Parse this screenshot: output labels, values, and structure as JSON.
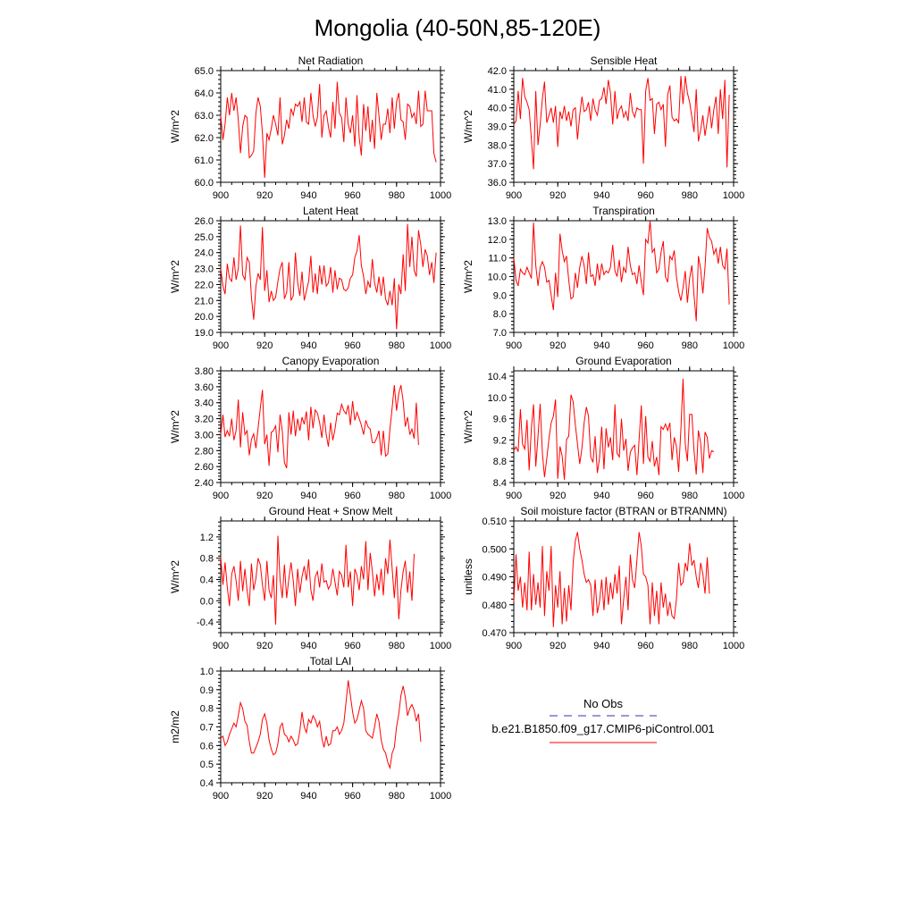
{
  "figure_title": "Mongolia (40-50N,85-120E)",
  "legend": {
    "obs_label": "No Obs",
    "obs_color": "#3333aa",
    "model_label": "b.e21.B1850.f09_g17.CMIP6-piControl.001",
    "model_color": "#ff0000"
  },
  "chart_data": [
    {
      "type": "line",
      "title": "Net Radiation",
      "ylabel": "W/m^2",
      "xlim": [
        900,
        1000
      ],
      "ylim": [
        60.0,
        65.0
      ],
      "xticks": [
        "900",
        "920",
        "940",
        "960",
        "980",
        "1000"
      ],
      "yticks": [
        "60.0",
        "61.0",
        "62.0",
        "63.0",
        "64.0",
        "65.0"
      ],
      "x_start": 900,
      "values": [
        63.0,
        61.9,
        62.6,
        63.8,
        63.0,
        64.0,
        63.2,
        63.8,
        62.8,
        61.3,
        62.5,
        63.0,
        62.9,
        61.1,
        61.2,
        61.4,
        63.1,
        63.8,
        63.4,
        62.2,
        60.2,
        62.2,
        61.9,
        62.4,
        63.0,
        62.6,
        62.1,
        63.8,
        61.7,
        62.1,
        62.8,
        62.4,
        63.3,
        63.0,
        63.5,
        63.4,
        63.6,
        62.7,
        63.8,
        62.7,
        62.6,
        64.0,
        63.0,
        62.5,
        62.9,
        64.4,
        62.0,
        63.0,
        63.2,
        62.5,
        62.0,
        63.6,
        62.4,
        64.5,
        63.1,
        62.9,
        61.8,
        63.8,
        62.6,
        62.2,
        63.0,
        61.6,
        63.9,
        62.0,
        61.2,
        63.5,
        62.3,
        63.4,
        61.8,
        62.8,
        61.5,
        64.0,
        63.0,
        61.9,
        62.6,
        62.6,
        63.3,
        62.2,
        63.8,
        62.4,
        63.6,
        64.0,
        62.8,
        62.7,
        61.9,
        63.5,
        63.4,
        62.9,
        63.1,
        62.6,
        64.1,
        62.5,
        62.6,
        64.1,
        63.2,
        63.2,
        63.2,
        61.3,
        60.9
      ]
    },
    {
      "type": "line",
      "title": "Sensible Heat",
      "ylabel": "W/m^2",
      "xlim": [
        900,
        1000
      ],
      "ylim": [
        36.0,
        42.0
      ],
      "xticks": [
        "900",
        "920",
        "940",
        "960",
        "980",
        "1000"
      ],
      "yticks": [
        "36.0",
        "37.0",
        "38.0",
        "39.0",
        "40.0",
        "41.0",
        "42.0"
      ],
      "x_start": 900,
      "values": [
        39.1,
        39.3,
        40.9,
        39.4,
        41.6,
        40.6,
        40.3,
        39.9,
        38.3,
        36.7,
        40.9,
        38.0,
        39.1,
        40.5,
        41.4,
        39.2,
        39.6,
        40.0,
        39.2,
        40.1,
        37.9,
        39.8,
        39.4,
        40.1,
        39.3,
        39.8,
        39.0,
        39.9,
        40.0,
        38.3,
        39.6,
        40.6,
        39.8,
        39.9,
        40.3,
        39.3,
        40.5,
        39.9,
        39.6,
        40.4,
        40.5,
        41.1,
        40.2,
        41.5,
        40.8,
        39.1,
        40.9,
        39.4,
        39.9,
        40.1,
        39.5,
        39.8,
        39.3,
        40.8,
        39.8,
        39.5,
        40.0,
        39.9,
        39.9,
        37.0,
        40.9,
        41.6,
        40.4,
        40.5,
        38.6,
        40.2,
        40.3,
        39.9,
        40.2,
        37.9,
        40.7,
        41.2,
        39.5,
        39.3,
        39.4,
        39.2,
        41.7,
        40.2,
        41.7,
        40.8,
        40.3,
        39.5,
        38.7,
        41.0,
        38.2,
        38.8,
        39.6,
        38.5,
        39.3,
        40.1,
        38.9,
        39.9,
        40.6,
        38.6,
        41.0,
        39.4,
        41.5,
        36.8,
        40.7
      ]
    },
    {
      "type": "line",
      "title": "Latent Heat",
      "ylabel": "W/m^2",
      "xlim": [
        900,
        1000
      ],
      "ylim": [
        19.0,
        26.0
      ],
      "xticks": [
        "900",
        "920",
        "940",
        "960",
        "980",
        "1000"
      ],
      "yticks": [
        "19.0",
        "20.0",
        "21.0",
        "22.0",
        "23.0",
        "24.0",
        "25.0",
        "26.0"
      ],
      "x_start": 900,
      "values": [
        23.0,
        21.9,
        21.4,
        23.3,
        22.4,
        22.2,
        23.7,
        22.3,
        23.0,
        25.7,
        22.6,
        22.3,
        23.7,
        23.4,
        21.2,
        19.8,
        21.9,
        22.7,
        22.3,
        25.6,
        21.6,
        22.9,
        20.9,
        21.6,
        21.0,
        21.2,
        22.2,
        23.0,
        23.4,
        21.1,
        21.5,
        23.4,
        21.0,
        21.3,
        24.0,
        22.1,
        21.3,
        22.8,
        21.0,
        21.6,
        22.2,
        23.8,
        21.5,
        22.7,
        21.4,
        23.2,
        22.0,
        23.2,
        21.9,
        22.1,
        23.1,
        21.5,
        22.9,
        21.7,
        22.4,
        22.3,
        21.7,
        21.6,
        21.8,
        22.4,
        22.6,
        23.7,
        24.1,
        25.1,
        23.2,
        22.5,
        21.4,
        22.2,
        21.8,
        23.6,
        22.1,
        21.5,
        22.5,
        21.3,
        22.5,
        21.1,
        20.7,
        21.6,
        20.7,
        22.4,
        19.2,
        22.0,
        21.4,
        23.9,
        21.6,
        25.8,
        23.1,
        25.0,
        22.9,
        22.5,
        25.4,
        24.5,
        23.1,
        24.2,
        23.8,
        22.6,
        23.4,
        22.1,
        24.0
      ]
    },
    {
      "type": "line",
      "title": "Transpiration",
      "ylabel": "W/m^2",
      "xlim": [
        900,
        1000
      ],
      "ylim": [
        7.0,
        13.0
      ],
      "xticks": [
        "900",
        "920",
        "940",
        "960",
        "980",
        "1000"
      ],
      "yticks": [
        "7.0",
        "8.0",
        "9.0",
        "10.0",
        "11.0",
        "12.0",
        "13.0"
      ],
      "x_start": 900,
      "values": [
        11.0,
        9.8,
        9.5,
        10.4,
        10.2,
        10.1,
        10.5,
        10.2,
        9.9,
        12.9,
        10.6,
        9.5,
        10.5,
        10.8,
        10.5,
        9.7,
        9.8,
        9.0,
        8.2,
        10.2,
        8.9,
        12.3,
        11.4,
        10.8,
        11.1,
        9.8,
        8.8,
        8.9,
        10.2,
        9.4,
        10.5,
        11.1,
        10.6,
        9.6,
        11.3,
        10.0,
        10.1,
        9.5,
        10.7,
        9.8,
        10.7,
        10.1,
        10.3,
        10.2,
        10.5,
        11.7,
        10.3,
        10.0,
        10.9,
        9.7,
        10.5,
        10.2,
        11.6,
        10.6,
        10.1,
        10.2,
        9.6,
        10.6,
        9.7,
        9.0,
        12.0,
        11.8,
        13.0,
        11.3,
        11.5,
        10.2,
        10.4,
        11.3,
        11.9,
        10.0,
        9.7,
        11.1,
        10.9,
        11.4,
        10.0,
        9.2,
        8.7,
        9.4,
        10.3,
        8.6,
        9.9,
        10.6,
        9.0,
        7.6,
        11.1,
        10.4,
        9.1,
        10.5,
        12.6,
        12.1,
        11.9,
        11.2,
        11.5,
        10.7,
        11.6,
        10.6,
        10.4,
        11.5,
        8.5
      ]
    },
    {
      "type": "line",
      "title": "Canopy Evaporation",
      "ylabel": "W/m^2",
      "xlim": [
        900,
        1000
      ],
      "ylim": [
        2.4,
        3.8
      ],
      "xticks": [
        "900",
        "920",
        "940",
        "960",
        "980",
        "1000"
      ],
      "yticks": [
        "2.40",
        "2.60",
        "2.80",
        "3.00",
        "3.20",
        "3.40",
        "3.60",
        "3.80"
      ],
      "x_start": 900,
      "values": [
        3.0,
        3.25,
        2.97,
        3.05,
        2.98,
        3.2,
        2.93,
        3.05,
        3.44,
        2.84,
        3.28,
        3.0,
        3.05,
        2.74,
        2.94,
        3.01,
        2.83,
        3.08,
        3.33,
        3.56,
        2.88,
        3.0,
        2.61,
        3.03,
        3.05,
        3.11,
        2.78,
        3.25,
        3.05,
        2.65,
        2.58,
        3.28,
        3.0,
        3.3,
        2.98,
        3.2,
        3.05,
        3.22,
        3.13,
        3.29,
        2.93,
        3.35,
        3.08,
        3.31,
        3.27,
        3.15,
        2.96,
        3.25,
        3.0,
        2.85,
        3.15,
        2.93,
        3.07,
        3.27,
        3.25,
        3.38,
        3.3,
        3.26,
        3.37,
        3.12,
        3.42,
        3.18,
        3.28,
        3.2,
        3.12,
        3.0,
        3.18,
        3.1,
        3.07,
        2.9,
        2.9,
        2.96,
        3.05,
        2.74,
        3.05,
        2.73,
        2.76,
        3.07,
        3.34,
        3.62,
        3.3,
        3.52,
        3.62,
        3.42,
        3.1,
        3.22,
        3.0,
        3.07,
        2.95,
        3.4,
        2.87
      ]
    },
    {
      "type": "line",
      "title": "Ground Evaporation",
      "ylabel": "W/m^2",
      "xlim": [
        900,
        1000
      ],
      "ylim": [
        8.4,
        10.5
      ],
      "xticks": [
        "900",
        "920",
        "940",
        "960",
        "980",
        "1000"
      ],
      "yticks": [
        "8.4",
        "8.8",
        "9.2",
        "9.6",
        "10.0",
        "10.4"
      ],
      "x_start": 900,
      "values": [
        9.0,
        9.07,
        8.98,
        9.78,
        9.12,
        9.03,
        9.58,
        8.63,
        9.42,
        9.87,
        8.7,
        9.27,
        9.88,
        8.95,
        8.5,
        8.85,
        9.23,
        9.52,
        9.65,
        9.96,
        8.47,
        9.08,
        8.9,
        8.45,
        9.21,
        9.27,
        10.05,
        9.92,
        9.48,
        9.12,
        8.75,
        9.05,
        9.52,
        9.82,
        9.65,
        8.88,
        8.78,
        9.27,
        8.58,
        8.85,
        9.45,
        8.65,
        9.42,
        9.06,
        9.25,
        8.82,
        9.87,
        8.95,
        8.88,
        9.6,
        9.0,
        9.22,
        8.62,
        8.97,
        9.05,
        9.1,
        8.54,
        9.2,
        9.85,
        8.75,
        9.65,
        8.88,
        8.8,
        9.18,
        8.7,
        8.88,
        8.54,
        9.45,
        9.4,
        9.5,
        9.38,
        9.52,
        8.82,
        9.25,
        9.08,
        8.6,
        9.4,
        10.35,
        9.12,
        8.8,
        9.68,
        9.68,
        9.0,
        8.55,
        9.38,
        9.15,
        8.58,
        9.35,
        9.25,
        8.85,
        9.0,
        8.98
      ]
    },
    {
      "type": "line",
      "title": "Ground Heat + Snow Melt",
      "ylabel": "W/m^2",
      "xlim": [
        900,
        1000
      ],
      "ylim": [
        -0.6,
        1.5
      ],
      "xticks": [
        "900",
        "920",
        "940",
        "960",
        "980",
        "1000"
      ],
      "yticks": [
        "-0.4",
        "0.0",
        "0.4",
        "0.8",
        "1.2"
      ],
      "x_start": 900,
      "values": [
        0.82,
        0.3,
        0.72,
        0.25,
        -0.1,
        0.5,
        0.65,
        0.38,
        0.0,
        0.75,
        0.18,
        0.6,
        0.2,
        -0.1,
        0.7,
        0.2,
        0.42,
        0.8,
        0.68,
        0.3,
        0.0,
        0.75,
        0.2,
        0.05,
        0.48,
        -0.45,
        1.22,
        0.4,
        0.05,
        0.68,
        0.05,
        0.42,
        0.72,
        0.38,
        -0.1,
        0.6,
        0.15,
        0.45,
        0.65,
        0.38,
        0.78,
        0.2,
        0.0,
        0.45,
        0.55,
        0.25,
        0.7,
        0.35,
        0.38,
        0.22,
        0.3,
        0.6,
        0.35,
        0.1,
        0.55,
        0.48,
        0.25,
        1.05,
        0.25,
        0.55,
        -0.1,
        0.6,
        0.48,
        0.2,
        0.65,
        0.4,
        1.12,
        0.2,
        0.9,
        0.55,
        0.08,
        0.5,
        0.2,
        0.6,
        0.1,
        0.8,
        0.5,
        1.15,
        0.6,
        0.05,
        0.65,
        -0.35,
        0.2,
        0.55,
        0.75,
        0.15,
        0.55,
        0.0,
        0.88
      ]
    },
    {
      "type": "line",
      "title": "Soil moisture factor (BTRAN or BTRANMN)",
      "ylabel": "unitless",
      "xlim": [
        900,
        1000
      ],
      "ylim": [
        0.47,
        0.51
      ],
      "xticks": [
        "900",
        "920",
        "940",
        "960",
        "980",
        "1000"
      ],
      "yticks": [
        "0.470",
        "0.480",
        "0.490",
        "0.500",
        "0.510"
      ],
      "x_start": 900,
      "values": [
        0.481,
        0.498,
        0.485,
        0.49,
        0.479,
        0.488,
        0.478,
        0.499,
        0.478,
        0.491,
        0.48,
        0.488,
        0.479,
        0.501,
        0.476,
        0.492,
        0.485,
        0.501,
        0.472,
        0.487,
        0.479,
        0.492,
        0.473,
        0.486,
        0.474,
        0.487,
        0.478,
        0.495,
        0.503,
        0.506,
        0.5,
        0.496,
        0.491,
        0.488,
        0.489,
        0.487,
        0.476,
        0.489,
        0.477,
        0.481,
        0.489,
        0.478,
        0.49,
        0.48,
        0.488,
        0.482,
        0.491,
        0.484,
        0.494,
        0.473,
        0.482,
        0.49,
        0.478,
        0.498,
        0.489,
        0.486,
        0.496,
        0.506,
        0.501,
        0.491,
        0.49,
        0.487,
        0.473,
        0.488,
        0.476,
        0.485,
        0.473,
        0.488,
        0.479,
        0.484,
        0.476,
        0.481,
        0.476,
        0.475,
        0.482,
        0.495,
        0.487,
        0.488,
        0.495,
        0.492,
        0.502,
        0.494,
        0.496,
        0.49,
        0.486,
        0.495,
        0.491,
        0.484,
        0.497,
        0.484
      ]
    },
    {
      "type": "line",
      "title": "Total LAI",
      "ylabel": "m2/m2",
      "xlim": [
        900,
        1000
      ],
      "ylim": [
        0.4,
        1.0
      ],
      "xticks": [
        "900",
        "920",
        "940",
        "960",
        "980",
        "1000"
      ],
      "yticks": [
        "0.4",
        "0.5",
        "0.6",
        "0.7",
        "0.8",
        "0.9",
        "1.0"
      ],
      "x_start": 900,
      "values": [
        0.64,
        0.65,
        0.6,
        0.62,
        0.66,
        0.69,
        0.72,
        0.7,
        0.76,
        0.83,
        0.8,
        0.73,
        0.71,
        0.62,
        0.56,
        0.56,
        0.59,
        0.62,
        0.66,
        0.74,
        0.77,
        0.72,
        0.63,
        0.58,
        0.55,
        0.56,
        0.61,
        0.7,
        0.72,
        0.66,
        0.65,
        0.62,
        0.65,
        0.63,
        0.6,
        0.61,
        0.68,
        0.78,
        0.7,
        0.67,
        0.74,
        0.72,
        0.76,
        0.74,
        0.7,
        0.73,
        0.64,
        0.59,
        0.65,
        0.6,
        0.61,
        0.68,
        0.68,
        0.7,
        0.66,
        0.68,
        0.72,
        0.83,
        0.95,
        0.87,
        0.78,
        0.72,
        0.74,
        0.79,
        0.84,
        0.8,
        0.68,
        0.66,
        0.65,
        0.64,
        0.7,
        0.77,
        0.73,
        0.63,
        0.58,
        0.56,
        0.51,
        0.48,
        0.56,
        0.59,
        0.7,
        0.77,
        0.87,
        0.92,
        0.86,
        0.76,
        0.8,
        0.82,
        0.79,
        0.73,
        0.77,
        0.62
      ]
    }
  ]
}
